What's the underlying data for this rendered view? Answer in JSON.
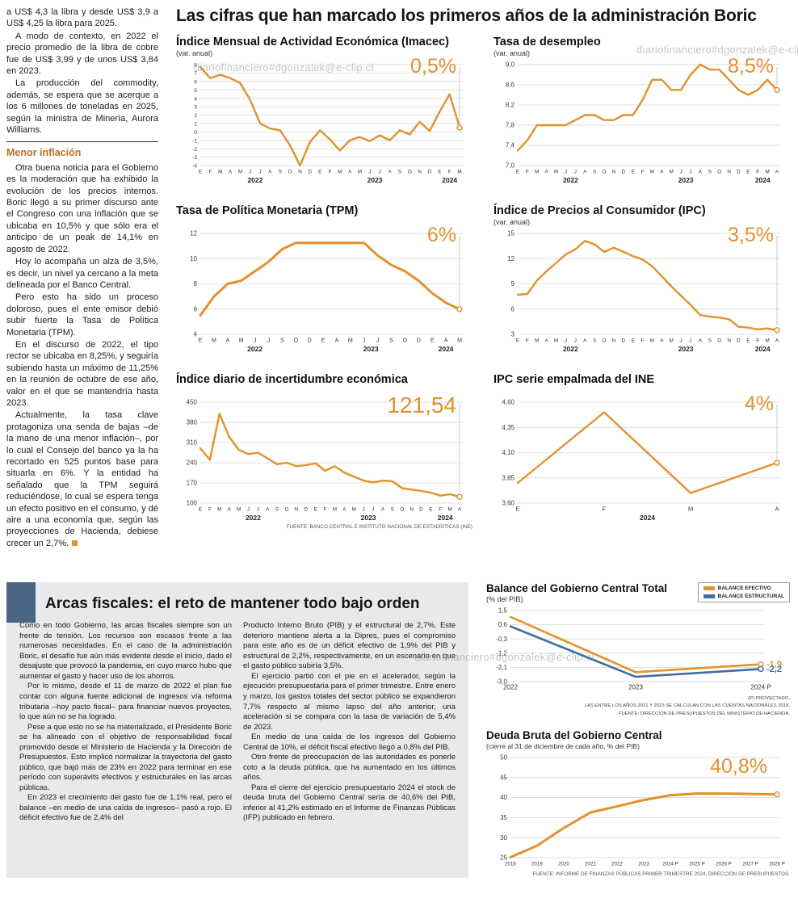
{
  "watermark": "diariofinanciero#dgonzalek@e-clip.cl",
  "headline": "Las cifras que han marcado los primeros años de la administración Boric",
  "colors": {
    "accent_orange": "#E2912D",
    "accent_blue": "#3E6FA3",
    "navy_block": "#4A6486",
    "subhead_orange": "#BE6E1F",
    "box_gray": "#E8E9EA"
  },
  "left_column": {
    "paragraphs_top": [
      "a US$ 4,3 la libra y desde US$ 3,9 a US$ 4,25 la libra para 2025.",
      "A modo de contexto, en 2022 el precio promedio de la libra de cobre fue de US$ 3,99 y de unos US$ 3,84 en 2023.",
      "La producción del commodity, además, se espera que se acerque a los 6 millones de toneladas en 2025, según la ministra de Minería, Aurora Williams."
    ],
    "subhead": "Menor inflación",
    "paragraphs_mid": [
      "Otra buena noticia para el Gobierno es la moderación que ha exhibido la evolución de los precios internos. Boric llegó a su primer discurso ante el Congreso con una inflación que se ubicaba en 10,5% y que sólo era el anticipo de un peak de 14,1% en agosto de 2022.",
      "Hoy lo acompaña un alza de 3,5%, es decir, un nivel ya cercano a la meta delineada por el Banco Central.",
      "Pero esto ha sido un proceso doloroso, pues el ente emisor debió subir fuerte la Tasa de Política Monetaria (TPM).",
      "En el discurso de 2022, el tipo rector se ubicaba en 8,25%, y seguiría subiendo hasta un máximo de 11,25% en la reunión de octubre de ese año, valor en el que se mantendría hasta 2023."
    ],
    "last_paragraph": "Actualmente, la tasa clave protagoniza una senda de bajas –de la mano de una menor inflación–, por lo cual el Consejo del banco ya la ha recortado en 525 puntos base para situarla en 6%. Y la entidad ha señalado que la TPM seguirá reduciéndose, lo cual se espera tenga un efecto positivo en el consumo, y dé aire a una economía que, según las proyecciones de Hacienda, debiese crecer un 2,7%."
  },
  "chart_data": [
    {
      "id": "imacec",
      "type": "line",
      "title": "Índice Mensual de Actividad Económica (Imacec)",
      "subtitle": "(var. anual)",
      "big_label": "0,5%",
      "x": [
        "E",
        "F",
        "M",
        "A",
        "M",
        "J",
        "J",
        "A",
        "S",
        "O",
        "N",
        "D",
        "E",
        "F",
        "M",
        "A",
        "M",
        "J",
        "J",
        "A",
        "S",
        "O",
        "N",
        "D",
        "E",
        "F",
        "M"
      ],
      "year_groups": [
        {
          "label": "2022",
          "count": 12
        },
        {
          "label": "2023",
          "count": 12
        },
        {
          "label": "2024",
          "count": 3
        }
      ],
      "ylim": [
        -4,
        8
      ],
      "ytick_values": [
        8,
        7,
        6,
        5,
        4,
        3,
        2,
        1,
        0,
        -1,
        -2,
        -3,
        -4
      ],
      "ytick_labels": [
        "8",
        "7",
        "6",
        "5",
        "4",
        "3",
        "2",
        "1",
        "0",
        "-1",
        "-2",
        "-3",
        "-4"
      ],
      "y_font": 6.8,
      "series": [
        {
          "name": "Imacec",
          "color": "#E2912D",
          "values": [
            7.7,
            6.4,
            6.8,
            6.4,
            5.8,
            3.8,
            1.0,
            0.4,
            0.2,
            -1.6,
            -4.0,
            -1.2,
            0.2,
            -0.9,
            -2.2,
            -1.0,
            -0.6,
            -1.1,
            -0.4,
            -1.0,
            0.2,
            -0.3,
            1.2,
            0.1,
            2.4,
            4.5,
            0.5
          ]
        }
      ],
      "guide": true
    },
    {
      "id": "desempleo",
      "type": "line",
      "title": "Tasa de desempleo",
      "subtitle": "(var. anual)",
      "big_label": "8,5%",
      "x": [
        "E",
        "F",
        "M",
        "A",
        "M",
        "J",
        "J",
        "A",
        "S",
        "O",
        "N",
        "D",
        "E",
        "F",
        "M",
        "A",
        "M",
        "J",
        "J",
        "A",
        "S",
        "O",
        "N",
        "D",
        "E",
        "F",
        "M",
        "A"
      ],
      "year_groups": [
        {
          "label": "2022",
          "count": 12
        },
        {
          "label": "2023",
          "count": 12
        },
        {
          "label": "2024",
          "count": 4
        }
      ],
      "ylim": [
        7.0,
        9.0
      ],
      "ytick_values": [
        9.0,
        8.6,
        8.2,
        7.8,
        7.4,
        7.0
      ],
      "ytick_labels": [
        "9,0",
        "8,6",
        "8,2",
        "7,8",
        "7,4",
        "7,0"
      ],
      "series": [
        {
          "name": "Tasa de desempleo",
          "color": "#E2912D",
          "values": [
            7.3,
            7.5,
            7.8,
            7.8,
            7.8,
            7.8,
            7.9,
            8.0,
            8.0,
            7.9,
            7.9,
            8.0,
            8.0,
            8.3,
            8.7,
            8.7,
            8.5,
            8.5,
            8.8,
            9.0,
            8.9,
            8.9,
            8.7,
            8.5,
            8.4,
            8.5,
            8.7,
            8.5
          ]
        }
      ],
      "guide": true
    },
    {
      "id": "tpm",
      "type": "line",
      "title": "Tasa de Política Monetaria (TPM)",
      "big_label": "6%",
      "x": [
        "E",
        "M",
        "A",
        "M",
        "J",
        "J",
        "S",
        "O",
        "D",
        "E",
        "A",
        "M",
        "J",
        "J",
        "S",
        "O",
        "D",
        "E",
        "A",
        "M"
      ],
      "x_font": 7,
      "year_groups": [
        {
          "label": "2022",
          "count": 9
        },
        {
          "label": "2023",
          "count": 8
        },
        {
          "label": "2024",
          "count": 3
        }
      ],
      "ylim": [
        4,
        12
      ],
      "ytick_values": [
        12,
        10,
        8,
        6,
        4
      ],
      "ytick_labels": [
        "12",
        "10",
        "8",
        "6",
        "4"
      ],
      "stroke": 3,
      "series": [
        {
          "name": "TPM",
          "color": "#E2912D",
          "values": [
            5.5,
            7.0,
            8.0,
            8.25,
            9.0,
            9.75,
            10.75,
            11.25,
            11.25,
            11.25,
            11.25,
            11.25,
            11.25,
            10.25,
            9.5,
            9.0,
            8.25,
            7.25,
            6.5,
            6.0
          ]
        }
      ],
      "guide": true
    },
    {
      "id": "ipc",
      "type": "line",
      "title": "Índice de Precios al Consumidor (IPC)",
      "subtitle": "(var. anual)",
      "big_label": "3,5%",
      "x": [
        "E",
        "F",
        "M",
        "A",
        "M",
        "J",
        "J",
        "A",
        "S",
        "O",
        "N",
        "D",
        "E",
        "F",
        "M",
        "A",
        "M",
        "J",
        "J",
        "A",
        "S",
        "O",
        "N",
        "D",
        "E",
        "F",
        "M",
        "A"
      ],
      "year_groups": [
        {
          "label": "2022",
          "count": 12
        },
        {
          "label": "2023",
          "count": 12
        },
        {
          "label": "2024",
          "count": 4
        }
      ],
      "ylim": [
        3,
        15
      ],
      "ytick_values": [
        15,
        12,
        9,
        6,
        3
      ],
      "ytick_labels": [
        "15",
        "12",
        "9",
        "6",
        "3"
      ],
      "series": [
        {
          "name": "IPC",
          "color": "#E2912D",
          "values": [
            7.7,
            7.8,
            9.4,
            10.5,
            11.5,
            12.5,
            13.1,
            14.1,
            13.7,
            12.8,
            13.3,
            12.8,
            12.3,
            11.9,
            11.1,
            9.9,
            8.7,
            7.6,
            6.5,
            5.3,
            5.1,
            5.0,
            4.8,
            3.9,
            3.8,
            3.6,
            3.7,
            3.5
          ]
        }
      ],
      "guide": true
    },
    {
      "id": "incertidumbre",
      "type": "line",
      "title": "Índice diario de incertidumbre económica",
      "big_label": "121,54",
      "x": [
        "E",
        "F",
        "M",
        "A",
        "M",
        "J",
        "J",
        "A",
        "S",
        "O",
        "N",
        "D",
        "E",
        "F",
        "M",
        "A",
        "M",
        "J",
        "J",
        "A",
        "S",
        "O",
        "N",
        "D",
        "E",
        "F",
        "M",
        "A"
      ],
      "year_groups": [
        {
          "label": "2022",
          "count": 12
        },
        {
          "label": "2023",
          "count": 12
        },
        {
          "label": "2024",
          "count": 4
        }
      ],
      "ylim": [
        100,
        450
      ],
      "ytick_values": [
        450,
        380,
        310,
        240,
        170,
        100
      ],
      "ytick_labels": [
        "450",
        "380",
        "310",
        "240",
        "170",
        "100"
      ],
      "series": [
        {
          "name": "Incertidumbre económica",
          "color": "#E2912D",
          "values": [
            290,
            250,
            410,
            330,
            285,
            270,
            275,
            255,
            235,
            240,
            228,
            232,
            238,
            212,
            228,
            206,
            192,
            178,
            172,
            178,
            176,
            152,
            147,
            142,
            136,
            126,
            131,
            121.54
          ]
        }
      ],
      "guide": true,
      "source": "FUENTE: BANCO CENTRAL E INSTITUTO NACIONAL DE ESTADÍSTICAS (INE)"
    },
    {
      "id": "ipc_ine",
      "type": "line",
      "title": "IPC serie empalmada del INE",
      "big_label": "4%",
      "x": [
        "E",
        "F",
        "M",
        "A"
      ],
      "x_font": 7.5,
      "year_groups": [
        {
          "label": "2024",
          "count": 4
        }
      ],
      "ylim": [
        3.6,
        4.6
      ],
      "ytick_values": [
        4.6,
        4.35,
        4.1,
        3.85,
        3.6
      ],
      "ytick_labels": [
        "4,60",
        "4,35",
        "4,10",
        "3,85",
        "3,60"
      ],
      "series": [
        {
          "name": "IPC serie empalmada",
          "color": "#E2912D",
          "values": [
            3.8,
            4.5,
            3.7,
            4.0
          ]
        }
      ],
      "guide": true
    },
    {
      "id": "balance",
      "type": "line",
      "title": "Balance del Gobierno Central Total",
      "subtitle": "(% del PIB)",
      "x": [
        "2022",
        "2023",
        "2024 P"
      ],
      "x_font": 8,
      "ylim": [
        -3.0,
        1.5
      ],
      "ytick_values": [
        1.5,
        0.6,
        -0.3,
        -1.2,
        -2.1,
        -3.0
      ],
      "ytick_labels": [
        "1,5",
        "0,6",
        "-0,3",
        "-1,2",
        "-2,1",
        "-3,0"
      ],
      "margin_right": 36,
      "stroke": 2.6,
      "legend": [
        {
          "label": "BALANCE EFECTIVO",
          "color": "#E2912D"
        },
        {
          "label": "BALANCE ESTRUCTURAL",
          "color": "#3E6FA3"
        }
      ],
      "series": [
        {
          "name": "Balance efectivo",
          "color": "#E2912D",
          "values": [
            1.1,
            -2.4,
            -1.9
          ],
          "end_label": "-1,9"
        },
        {
          "name": "Balance estructural",
          "color": "#3E6FA3",
          "values": [
            0.5,
            -2.7,
            -2.2
          ],
          "end_label": "-2,2"
        }
      ],
      "guide": false,
      "notes": [
        "(P) PROYECTADO.",
        "LAS ENTRE LOS AÑOS 2021 Y 2023 SE CALCULAN CON LAS CUENTAS NACIONALES 2018.",
        "FUENTE: DIRECCIÓN DE PRESUPUESTOS DEL MINISTERIO DE HACIENDA."
      ]
    },
    {
      "id": "deuda",
      "type": "line",
      "title": "Deuda Bruta del Gobierno Central",
      "subtitle": "(cierre al 31 de diciembre de cada año, % del PIB)",
      "big_label": "40,8%",
      "x": [
        "2018",
        "2019",
        "2020",
        "2021",
        "2022",
        "2023",
        "2024 P",
        "2025 P",
        "2026 P",
        "2027 P",
        "2028 P"
      ],
      "x_font": 6.2,
      "ylim": [
        25,
        50
      ],
      "ytick_values": [
        50,
        45,
        40,
        35,
        30,
        25
      ],
      "ytick_labels": [
        "50",
        "45",
        "40",
        "35",
        "30",
        "25"
      ],
      "stroke": 3,
      "series": [
        {
          "name": "Deuda bruta",
          "color": "#E2912D",
          "values": [
            25.1,
            28.0,
            32.4,
            36.3,
            37.8,
            39.4,
            40.6,
            41.0,
            41.0,
            40.9,
            40.8
          ]
        }
      ],
      "guide": false,
      "source": "FUENTE: INFORME DE FINANZAS PÚBLICAS PRIMER TRIMESTRE 2024, DIRECCIÓN DE PRESUPUESTOS."
    }
  ],
  "fiscal_box": {
    "title": "Arcas fiscales: el reto de mantener todo bajo orden",
    "col1": [
      "Como en todo Gobierno, las arcas fiscales siempre son un frente de tensión. Los recursos son escasos frente a las numerosas necesidades. En el caso de la administración Boric, el desafío fue aún más evidente desde el inicio, dado el desajuste que provocó la pandemia, en cuyo marco hubo que aumentar el gasto y hacer uso de los ahorros.",
      "Por lo mismo, desde el 11 de marzo de 2022 el plan fue contar con alguna fuente adicional de ingresos vía reforma tributaria –hoy pacto fiscal– para financiar nuevos proyectos, lo que aún no se ha logrado.",
      "Pese a que esto no se ha materializado, el Presidente Boric se ha alineado con el objetivo de responsabilidad fiscal promovido desde el Ministerio de Hacienda y la Dirección de Presupuestos. Esto implicó normalizar la trayectoria del gasto público, que bajó más de 23% en 2022 para terminar en ese período con superávits efectivos y estructurales en las arcas públicas.",
      "En 2023 el crecimiento del gasto fue de 1,1% real, pero el balance –en medio de una caída de ingresos– pasó a rojo. El déficit efectivo fue de 2,4% del"
    ],
    "col2": [
      "Producto Interno Bruto (PIB) y el estructural de 2,7%. Este deterioro mantiene alerta a la Dipres, pues el compromiso para este año es de un déficit efectivo de 1,9% del PIB y estructural de 2,2%, respectivamente, en un escenario en que el gasto público subiría 3,5%.",
      "El ejercicio partió con el pie en el acelerador, según la ejecución presupuestaria para el primer trimestre. Entre enero y marzo, los gastos totales del sector público se expandieron 7,7% respecto al mismo lapso del año anterior, una aceleración si se compara con la tasa de variación de 5,4% de 2023.",
      "En medio de una caída de los ingresos del Gobierno Central de 10%, el déficit fiscal efectivo llegó a 0,8% del PIB.",
      "Otro frente de preocupación de las autoridades es ponerle coto a la deuda pública, que ha aumentado en los últimos años.",
      "Para el cierre del ejercicio presupuestario 2024 el stock de deuda bruta del Gobierno Central sería de 40,6% del PIB, inferior al 41,2% estimado en el Informe de Finanzas Públicas (IFP) publicado en febrero."
    ]
  }
}
